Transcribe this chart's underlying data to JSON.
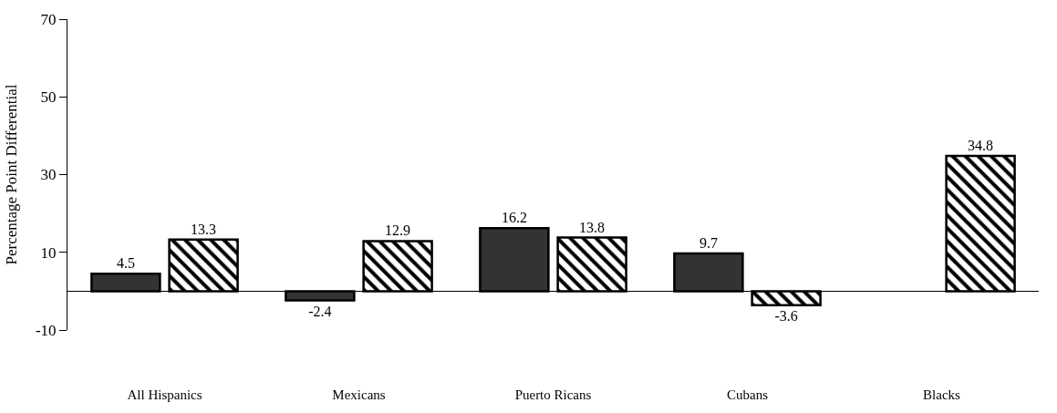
{
  "chart_data": {
    "type": "bar",
    "ylabel": "Percentage Point Differential",
    "categories": [
      "All Hispanics",
      "Mexicans",
      "Puerto Ricans",
      "Cubans",
      "Blacks"
    ],
    "series": [
      {
        "color": "#333333",
        "values": [
          4.5,
          -2.4,
          16.2,
          9.7,
          null
        ]
      },
      {
        "color": "#000000",
        "values": [
          13.3,
          12.9,
          13.8,
          -3.6,
          34.8
        ]
      }
    ],
    "data_labels": true,
    "ylim": [
      -10,
      70
    ],
    "yticks": [
      -10,
      10,
      30,
      50,
      70
    ],
    "legend": false
  }
}
